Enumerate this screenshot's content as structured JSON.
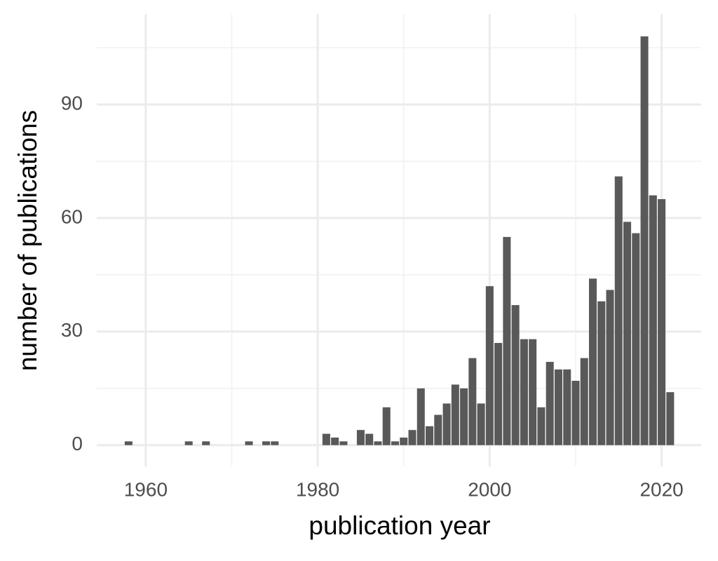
{
  "chart_data": {
    "type": "bar",
    "xlabel": "publication year",
    "ylabel": "number of publications",
    "x": [
      1958,
      1965,
      1967,
      1972,
      1974,
      1975,
      1981,
      1982,
      1983,
      1985,
      1986,
      1987,
      1988,
      1989,
      1990,
      1991,
      1992,
      1993,
      1994,
      1995,
      1996,
      1997,
      1998,
      1999,
      2000,
      2001,
      2002,
      2003,
      2004,
      2005,
      2006,
      2007,
      2008,
      2009,
      2010,
      2011,
      2012,
      2013,
      2014,
      2015,
      2016,
      2017,
      2018,
      2019,
      2020,
      2021
    ],
    "values": [
      1,
      1,
      1,
      1,
      1,
      1,
      3,
      2,
      1,
      4,
      3,
      1,
      10,
      1,
      2,
      4,
      15,
      5,
      8,
      11,
      16,
      15,
      23,
      11,
      42,
      27,
      55,
      37,
      28,
      28,
      10,
      22,
      20,
      20,
      17,
      23,
      44,
      38,
      41,
      71,
      59,
      56,
      108,
      66,
      65,
      14
    ],
    "color": "#595959",
    "xlim": [
      1954.3,
      2024.6
    ],
    "ylim": [
      -5.6,
      113.9
    ],
    "xticks": [
      1960,
      1980,
      2000,
      2020
    ],
    "yticks": [
      0,
      30,
      60,
      90
    ],
    "grid": true
  }
}
